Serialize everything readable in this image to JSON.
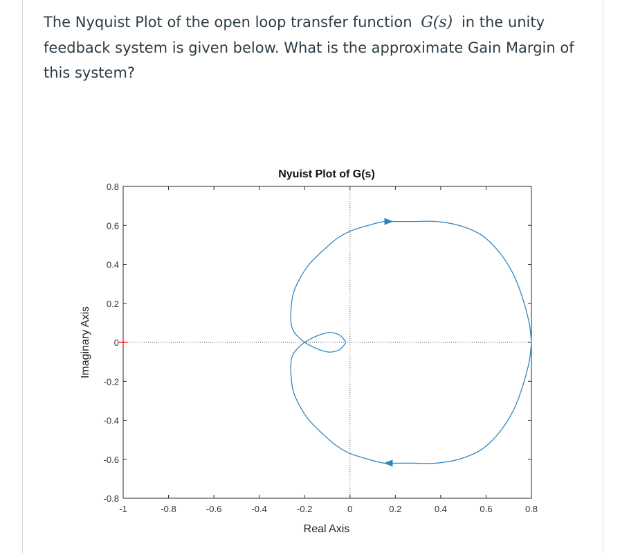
{
  "question": {
    "text_before": "The Nyquist Plot of the open loop transfer function",
    "math": "G(s)",
    "text_after": "in the unity feedback system is given below. What is the approximate Gain Margin of this system?"
  },
  "chart_data": {
    "type": "line",
    "title": "Nyuist Plot of G(s)",
    "xlabel": "Real Axis",
    "ylabel": "Imaginary Axis",
    "xlim": [
      -1,
      0.8
    ],
    "ylim": [
      -0.8,
      0.8
    ],
    "x_ticks": [
      "-1",
      "-0.8",
      "-0.6",
      "-0.4",
      "-0.2",
      "0",
      "0.2",
      "0.4",
      "0.6",
      "0.8"
    ],
    "y_ticks": [
      "0.8",
      "0.6",
      "0.4",
      "0.2",
      "0",
      "-0.2",
      "-0.4",
      "-0.6",
      "-0.8"
    ],
    "critical_point": [
      -1,
      0
    ],
    "line_color": "#2e86c1",
    "critical_color": "#ff2a1a",
    "series": [
      {
        "x": [
          0.8,
          0.79,
          0.76,
          0.72,
          0.66,
          0.58,
          0.48,
          0.38,
          0.28,
          0.2,
          0.15,
          0.08,
          0.0,
          -0.06,
          -0.12,
          -0.18,
          -0.22,
          -0.25,
          -0.26,
          -0.26,
          -0.25,
          -0.23,
          -0.2,
          -0.17,
          -0.13,
          -0.09,
          -0.05,
          -0.03,
          -0.02,
          -0.03,
          -0.05,
          -0.09,
          -0.13,
          -0.17,
          -0.2
        ],
        "y": [
          0.0,
          0.1,
          0.23,
          0.35,
          0.46,
          0.55,
          0.6,
          0.62,
          0.62,
          0.62,
          0.62,
          0.6,
          0.57,
          0.53,
          0.47,
          0.4,
          0.33,
          0.25,
          0.17,
          0.1,
          0.06,
          0.03,
          0.0,
          -0.02,
          -0.04,
          -0.05,
          -0.04,
          -0.02,
          0.0,
          0.02,
          0.04,
          0.05,
          0.04,
          0.02,
          0.0
        ]
      }
    ]
  }
}
